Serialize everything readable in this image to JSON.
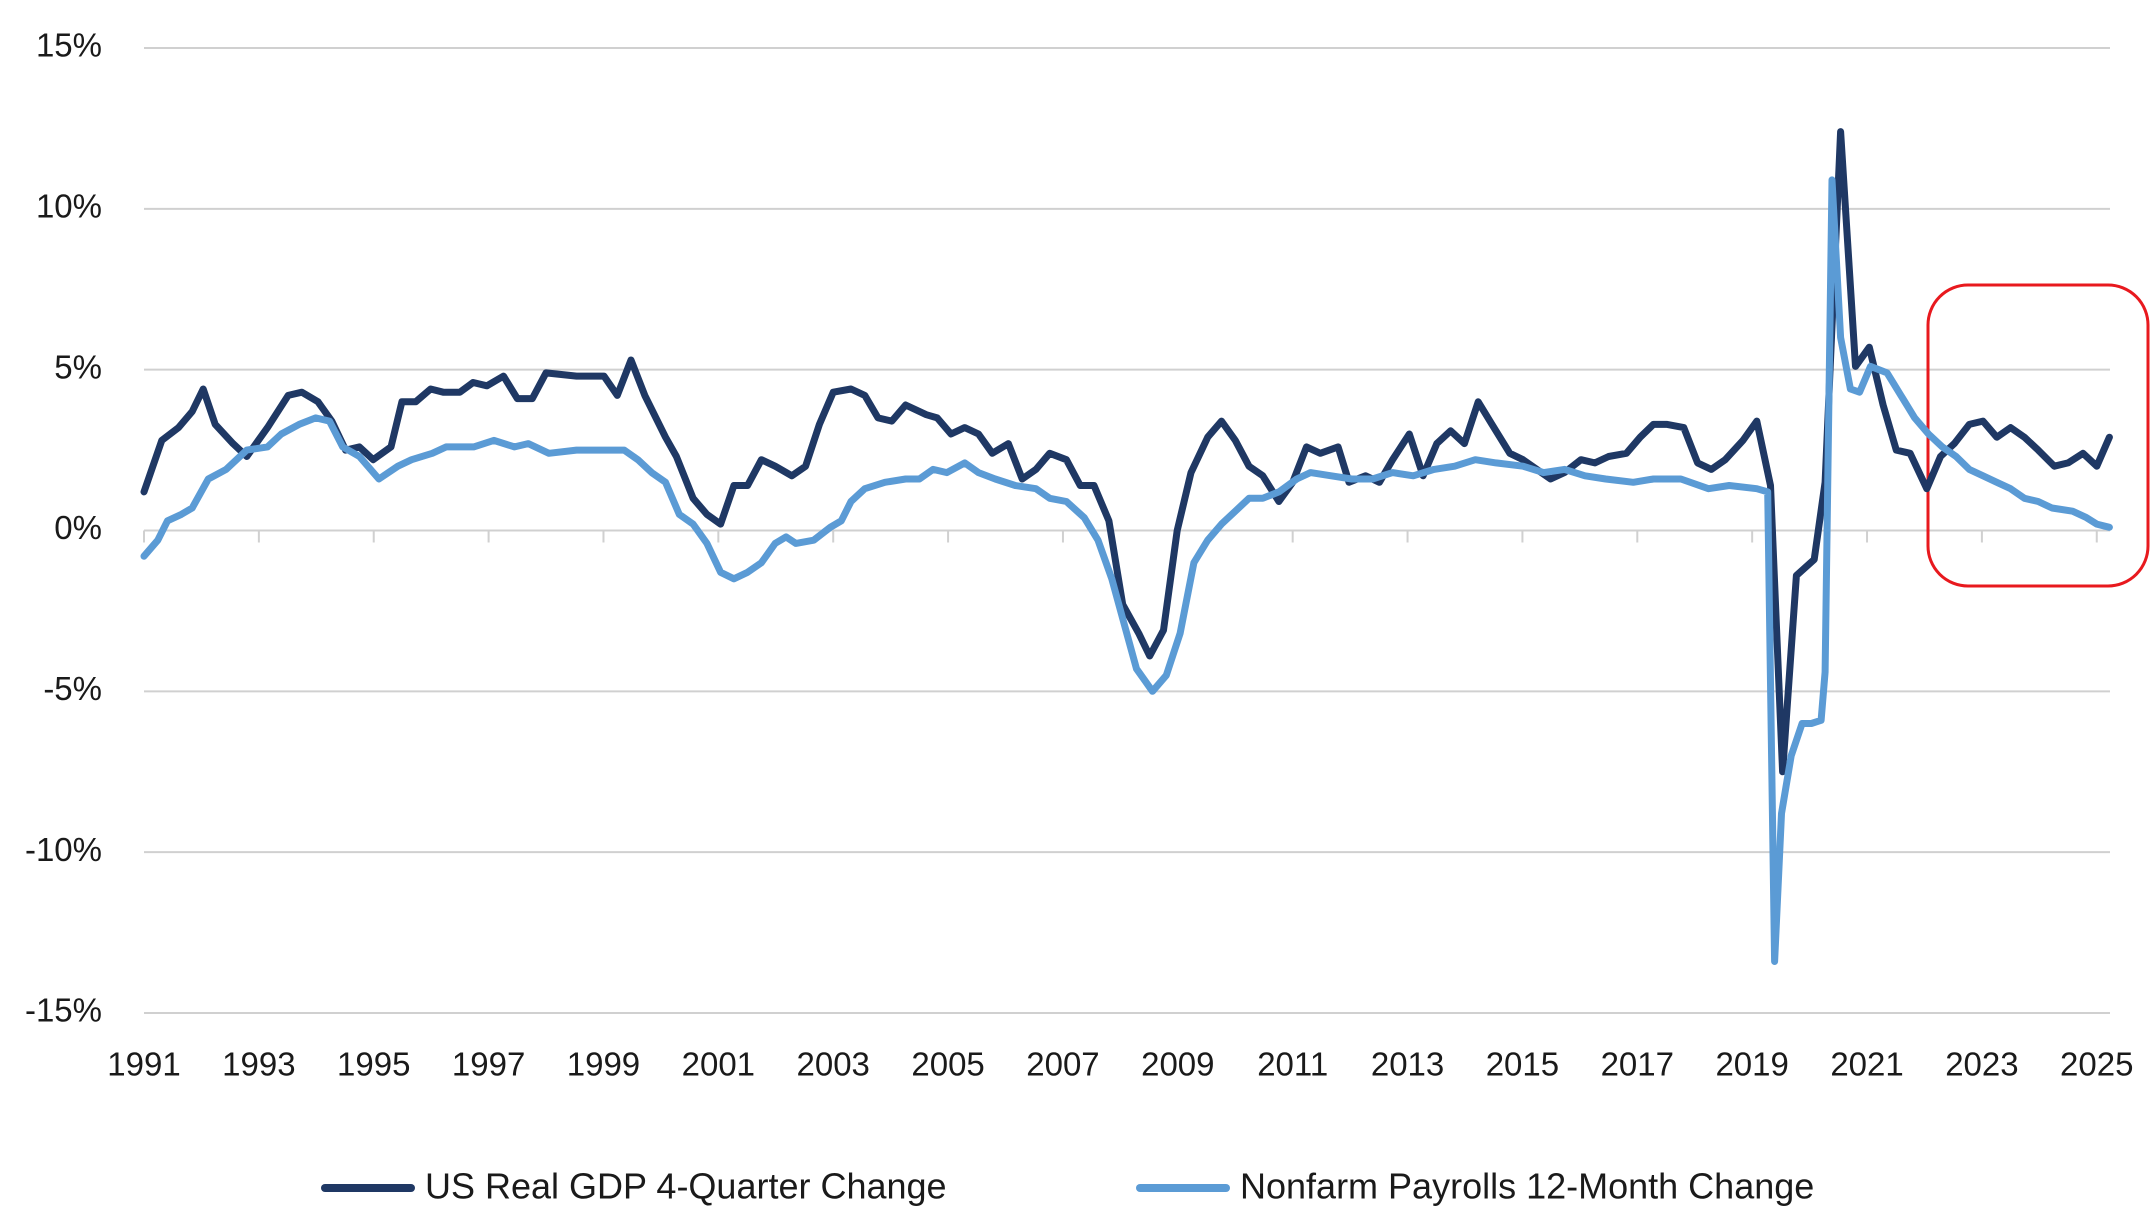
{
  "chart_data": {
    "type": "line",
    "xlim": [
      1991,
      2025.3
    ],
    "xticks": [
      1991,
      1993,
      1995,
      1997,
      1999,
      2001,
      2003,
      2005,
      2007,
      2009,
      2011,
      2013,
      2015,
      2017,
      2019,
      2021,
      2023,
      2025
    ],
    "ylim": [
      -15,
      15
    ],
    "yticks": [
      {
        "value": 15,
        "label": "15%"
      },
      {
        "value": 10,
        "label": "10%"
      },
      {
        "value": 5,
        "label": "5%"
      },
      {
        "value": 0,
        "label": "0%"
      },
      {
        "value": -5,
        "label": "-5%"
      },
      {
        "value": -10,
        "label": "-10%"
      },
      {
        "value": -15,
        "label": "-15%"
      }
    ],
    "grid": true,
    "legend": "bottom",
    "series": [
      {
        "name": "US Real GDP 4-Quarter Change",
        "color": "#1f3864",
        "x": [
          1991.0,
          1991.31,
          1991.6,
          1991.84,
          1992.03,
          1992.24,
          1992.55,
          1992.79,
          1993.15,
          1993.51,
          1993.75,
          1994.03,
          1994.27,
          1994.51,
          1994.75,
          1994.99,
          1995.3,
          1995.49,
          1995.73,
          1995.99,
          1996.21,
          1996.5,
          1996.73,
          1996.97,
          1997.26,
          1997.5,
          1997.76,
          1998.0,
          1998.53,
          1999.01,
          1999.24,
          1999.48,
          1999.72,
          2000.08,
          2000.27,
          2000.56,
          2000.8,
          2001.04,
          2001.27,
          2001.51,
          2001.75,
          2001.99,
          2002.28,
          2002.52,
          2002.76,
          2003.0,
          2003.31,
          2003.55,
          2003.78,
          2004.02,
          2004.26,
          2004.62,
          2004.81,
          2005.05,
          2005.29,
          2005.53,
          2005.77,
          2006.05,
          2006.29,
          2006.53,
          2006.77,
          2007.06,
          2007.3,
          2007.54,
          2007.8,
          2008.04,
          2008.32,
          2008.51,
          2008.75,
          2008.99,
          2009.23,
          2009.52,
          2009.76,
          2010.0,
          2010.24,
          2010.48,
          2010.76,
          2011.0,
          2011.24,
          2011.48,
          2011.79,
          2011.98,
          2012.27,
          2012.51,
          2012.74,
          2013.03,
          2013.27,
          2013.51,
          2013.75,
          2013.99,
          2014.23,
          2014.47,
          2014.78,
          2015.01,
          2015.25,
          2015.49,
          2015.73,
          2016.02,
          2016.26,
          2016.5,
          2016.81,
          2017.05,
          2017.28,
          2017.52,
          2017.81,
          2018.05,
          2018.29,
          2018.53,
          2018.84,
          2019.08,
          2019.32,
          2019.53,
          2019.77,
          2020.08,
          2020.27,
          2020.54,
          2020.8,
          2021.04,
          2021.28,
          2021.51,
          2021.75,
          2022.04,
          2022.28,
          2022.52,
          2022.78,
          2023.02,
          2023.26,
          2023.5,
          2023.74,
          2023.98,
          2024.26,
          2024.5,
          2024.76,
          2025.0,
          2025.22
        ],
        "values": [
          1.2,
          2.8,
          3.2,
          3.7,
          4.4,
          3.3,
          2.7,
          2.3,
          3.2,
          4.2,
          4.3,
          4.0,
          3.4,
          2.5,
          2.6,
          2.2,
          2.6,
          4.0,
          4.0,
          4.4,
          4.3,
          4.3,
          4.6,
          4.5,
          4.8,
          4.1,
          4.1,
          4.9,
          4.8,
          4.8,
          4.2,
          5.3,
          4.2,
          2.9,
          2.3,
          1.0,
          0.5,
          0.2,
          1.4,
          1.4,
          2.2,
          2.0,
          1.7,
          2.0,
          3.3,
          4.3,
          4.4,
          4.2,
          3.5,
          3.4,
          3.9,
          3.6,
          3.5,
          3.0,
          3.2,
          3.0,
          2.4,
          2.7,
          1.6,
          1.9,
          2.4,
          2.2,
          1.4,
          1.4,
          0.3,
          -2.3,
          -3.2,
          -3.9,
          -3.1,
          0.0,
          1.8,
          2.9,
          3.4,
          2.8,
          2.0,
          1.7,
          0.9,
          1.5,
          2.6,
          2.4,
          2.6,
          1.5,
          1.7,
          1.5,
          2.2,
          3.0,
          1.7,
          2.7,
          3.1,
          2.7,
          4.0,
          3.3,
          2.4,
          2.2,
          1.9,
          1.6,
          1.8,
          2.2,
          2.1,
          2.3,
          2.4,
          2.9,
          3.3,
          3.3,
          3.2,
          2.1,
          1.9,
          2.2,
          2.8,
          3.4,
          1.4,
          -7.5,
          -1.4,
          -0.9,
          1.5,
          12.4,
          5.1,
          5.7,
          3.9,
          2.5,
          2.4,
          1.3,
          2.3,
          2.7,
          3.3,
          3.4,
          2.9,
          3.2,
          2.9,
          2.5,
          2.0,
          2.1,
          2.4,
          2.0,
          2.9
        ]
      },
      {
        "name": "Nonfarm Payrolls 12-Month Change",
        "color": "#5b9bd5",
        "x": [
          1991.0,
          1991.24,
          1991.41,
          1991.65,
          1991.84,
          1992.12,
          1992.43,
          1992.79,
          1993.15,
          1993.39,
          1993.7,
          1993.99,
          1994.23,
          1994.46,
          1994.75,
          1995.09,
          1995.42,
          1995.66,
          1996.02,
          1996.26,
          1996.74,
          1997.09,
          1997.45,
          1997.69,
          1998.05,
          1998.53,
          1999.01,
          1999.36,
          1999.6,
          1999.84,
          2000.08,
          2000.32,
          2000.56,
          2000.8,
          2001.04,
          2001.27,
          2001.51,
          2001.75,
          2001.99,
          2002.18,
          2002.35,
          2002.66,
          2002.95,
          2003.14,
          2003.31,
          2003.55,
          2003.9,
          2004.26,
          2004.5,
          2004.74,
          2004.98,
          2005.29,
          2005.53,
          2005.82,
          2006.17,
          2006.53,
          2006.77,
          2007.06,
          2007.37,
          2007.61,
          2007.85,
          2008.08,
          2008.28,
          2008.56,
          2008.8,
          2009.04,
          2009.28,
          2009.52,
          2009.76,
          2010.0,
          2010.24,
          2010.48,
          2010.76,
          2011.07,
          2011.31,
          2011.67,
          2012.03,
          2012.39,
          2012.74,
          2013.1,
          2013.46,
          2013.82,
          2014.18,
          2014.54,
          2015.01,
          2015.37,
          2015.73,
          2016.09,
          2016.45,
          2016.93,
          2017.28,
          2017.76,
          2018.24,
          2018.6,
          2019.08,
          2019.27,
          2019.39,
          2019.51,
          2019.68,
          2019.87,
          2020.03,
          2020.2,
          2020.27,
          2020.39,
          2020.54,
          2020.71,
          2020.87,
          2021.06,
          2021.35,
          2021.59,
          2021.83,
          2022.07,
          2022.31,
          2022.55,
          2022.78,
          2023.02,
          2023.26,
          2023.5,
          2023.74,
          2023.98,
          2024.22,
          2024.58,
          2024.82,
          2025.0,
          2025.22
        ],
        "values": [
          -0.8,
          -0.3,
          0.3,
          0.5,
          0.7,
          1.6,
          1.9,
          2.5,
          2.6,
          3.0,
          3.3,
          3.5,
          3.4,
          2.6,
          2.3,
          1.6,
          2.0,
          2.2,
          2.4,
          2.6,
          2.6,
          2.8,
          2.6,
          2.7,
          2.4,
          2.5,
          2.5,
          2.5,
          2.2,
          1.8,
          1.5,
          0.5,
          0.2,
          -0.4,
          -1.3,
          -1.5,
          -1.3,
          -1.0,
          -0.4,
          -0.2,
          -0.4,
          -0.3,
          0.1,
          0.3,
          0.9,
          1.3,
          1.5,
          1.6,
          1.6,
          1.9,
          1.8,
          2.1,
          1.8,
          1.6,
          1.4,
          1.3,
          1.0,
          0.9,
          0.4,
          -0.3,
          -1.5,
          -3.0,
          -4.3,
          -5.0,
          -4.5,
          -3.2,
          -1.0,
          -0.3,
          0.2,
          0.6,
          1.0,
          1.0,
          1.2,
          1.6,
          1.8,
          1.7,
          1.6,
          1.6,
          1.8,
          1.7,
          1.9,
          2.0,
          2.2,
          2.1,
          2.0,
          1.8,
          1.9,
          1.7,
          1.6,
          1.5,
          1.6,
          1.6,
          1.3,
          1.4,
          1.3,
          1.2,
          -13.4,
          -8.8,
          -7.0,
          -6.0,
          -6.0,
          -5.9,
          -4.4,
          10.9,
          6.0,
          4.4,
          4.3,
          5.1,
          4.9,
          4.2,
          3.5,
          3.0,
          2.6,
          2.3,
          1.9,
          1.7,
          1.5,
          1.3,
          1.0,
          0.9,
          0.7,
          0.6,
          0.4,
          0.2,
          0.1
        ]
      }
    ]
  }
}
